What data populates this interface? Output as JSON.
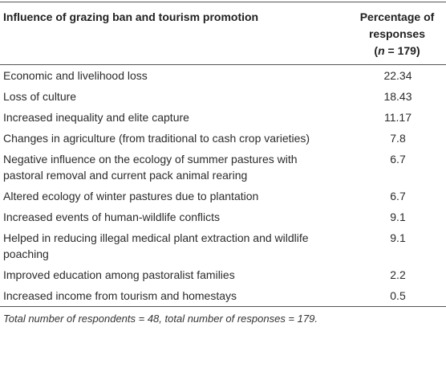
{
  "table": {
    "header": [
      "Influence of grazing ban and tourism promotion",
      "Percentage of responses"
    ],
    "sample_size_parts": [
      "(",
      "n",
      " = 179)"
    ],
    "rows": [
      [
        "Economic and livelihood loss",
        "22.34"
      ],
      [
        "Loss of culture",
        "18.43"
      ],
      [
        "Increased inequality and elite capture",
        "11.17"
      ],
      [
        "Changes in agriculture (from traditional to cash crop varieties)",
        "7.8"
      ],
      [
        "Negative influence on the ecology of summer pastures with pastoral removal and current pack animal rearing",
        "6.7"
      ],
      [
        "Altered ecology of winter pastures due to plantation",
        "6.7"
      ],
      [
        "Increased events of human-wildlife conflicts",
        "9.1"
      ],
      [
        "Helped in reducing illegal medical plant extraction and wildlife poaching",
        "9.1"
      ],
      [
        "Improved education among pastoralist families",
        "2.2"
      ],
      [
        "Increased income from tourism and homestays",
        "0.5"
      ]
    ],
    "footnote": "Total number of respondents = 48, total number of responses = 179."
  }
}
